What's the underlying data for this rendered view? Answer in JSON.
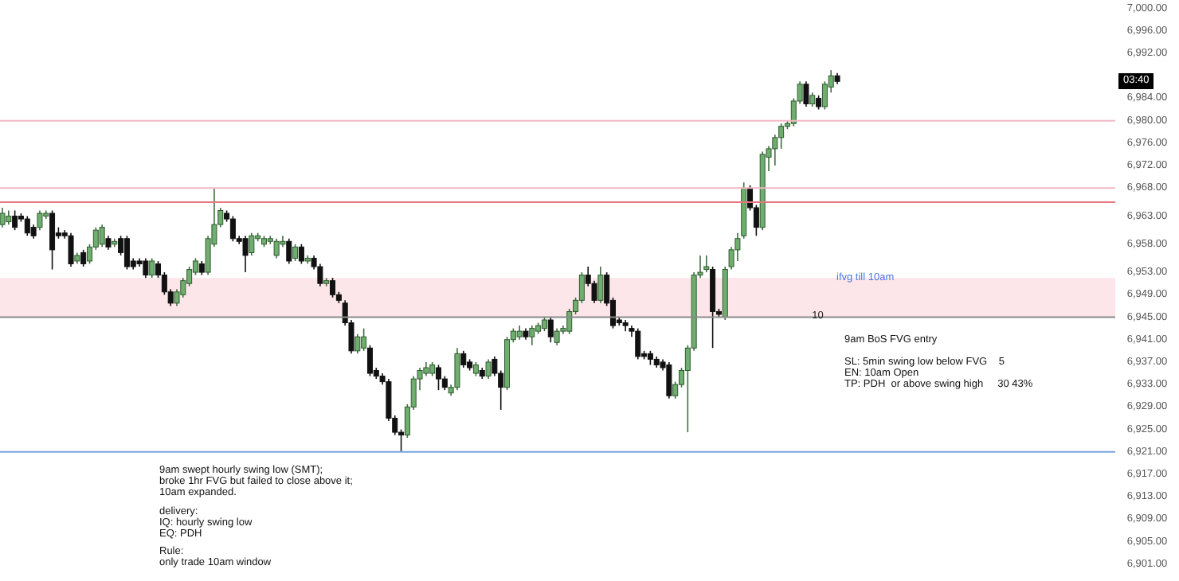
{
  "chart_data": {
    "type": "candlestick",
    "categories": [
      null,
      null,
      null,
      null,
      null,
      null,
      null,
      null,
      null,
      null,
      null,
      null,
      null,
      null,
      null,
      null,
      null,
      null,
      null,
      null,
      null,
      null,
      null,
      null,
      null,
      null,
      null,
      null,
      null,
      null,
      null,
      null,
      null,
      null,
      null,
      null,
      null,
      null,
      null,
      null,
      null,
      null,
      null,
      null,
      null,
      null,
      null,
      null,
      null,
      null,
      null,
      null,
      null,
      null,
      null,
      null,
      null,
      null,
      null,
      null,
      null,
      null,
      null,
      null,
      null,
      null,
      null,
      null,
      null,
      null,
      null,
      null,
      null,
      null,
      null,
      null,
      null,
      null,
      null,
      null,
      null,
      null,
      null,
      null,
      null,
      null,
      null,
      null,
      null,
      null,
      null,
      null,
      null,
      null,
      null,
      null,
      null,
      null,
      null,
      null,
      null,
      null,
      null,
      null,
      null,
      null,
      null,
      null,
      null,
      null,
      null,
      null,
      null,
      null,
      null,
      null,
      null,
      null,
      null,
      null,
      null,
      null,
      null,
      null,
      null,
      null,
      null,
      null,
      null,
      null,
      null,
      null,
      null,
      null,
      null,
      null,
      null,
      null,
      null,
      null,
      null,
      null,
      null,
      null,
      null,
      null,
      null,
      null,
      null,
      null,
      null,
      null,
      null,
      null,
      null,
      null,
      null,
      null,
      null,
      null,
      null,
      null,
      null,
      null,
      null,
      null,
      null,
      null,
      null,
      null,
      null,
      null,
      null,
      null,
      null,
      null,
      null,
      null,
      null
    ],
    "ohlc": [
      [
        6961.5,
        6964.5,
        6961,
        6963.5
      ],
      [
        6962,
        6964,
        6961.5,
        6963
      ],
      [
        6963,
        6964,
        6960.5,
        6961
      ],
      [
        6963,
        6963.5,
        6962,
        6962.5
      ],
      [
        6962.5,
        6963,
        6959.5,
        6960
      ],
      [
        6961,
        6961.5,
        6959,
        6959.5
      ],
      [
        6961,
        6964,
        6960.5,
        6963.5
      ],
      [
        6963,
        6964,
        6962.5,
        6963.5
      ],
      [
        6963.5,
        6964,
        6953.5,
        6957
      ],
      [
        6960,
        6961,
        6959,
        6959.5
      ],
      [
        6960,
        6960.5,
        6959,
        6959.5
      ],
      [
        6959.5,
        6960,
        6954,
        6954.5
      ],
      [
        6955,
        6956.5,
        6954.5,
        6956
      ],
      [
        6956.5,
        6957,
        6954,
        6954.5
      ],
      [
        6955,
        6958,
        6954.5,
        6957.5
      ],
      [
        6957.5,
        6961,
        6957,
        6960.5
      ],
      [
        6958,
        6961.5,
        6957.5,
        6961
      ],
      [
        6959,
        6959.5,
        6957,
        6957.5
      ],
      [
        6958,
        6959,
        6957.5,
        6958.5
      ],
      [
        6959,
        6959.5,
        6956,
        6956.5
      ],
      [
        6959,
        6959.5,
        6953.5,
        6954
      ],
      [
        6955,
        6955.5,
        6953.5,
        6954
      ],
      [
        6955,
        6955.5,
        6954,
        6954.5
      ],
      [
        6955,
        6955.5,
        6952,
        6952.5
      ],
      [
        6952.5,
        6955.5,
        6952,
        6955
      ],
      [
        6954.5,
        6955,
        6952,
        6952.5
      ],
      [
        6952.5,
        6953,
        6949,
        6949.5
      ],
      [
        6949.5,
        6950,
        6947,
        6947.5
      ],
      [
        6947.5,
        6950,
        6947,
        6949.5
      ],
      [
        6949,
        6952,
        6948.5,
        6951.5
      ],
      [
        6951,
        6954,
        6950.5,
        6953.5
      ],
      [
        6953,
        6955.5,
        6952.5,
        6955
      ],
      [
        6954.5,
        6955,
        6952.5,
        6953
      ],
      [
        6953,
        6959.5,
        6952.5,
        6959
      ],
      [
        6958,
        6968,
        6957.5,
        6961.5
      ],
      [
        6961.5,
        6964.5,
        6961,
        6964
      ],
      [
        6963.5,
        6964,
        6962,
        6962.5
      ],
      [
        6962.5,
        6963,
        6958.5,
        6959
      ],
      [
        6959,
        6959.5,
        6958,
        6958.5
      ],
      [
        6959,
        6959.5,
        6953,
        6956
      ],
      [
        6956.5,
        6960,
        6956,
        6959.5
      ],
      [
        6959,
        6960,
        6958.5,
        6959.5
      ],
      [
        6958,
        6959.5,
        6957.5,
        6959
      ],
      [
        6958.5,
        6959.5,
        6958,
        6959
      ],
      [
        6956,
        6959,
        6955.5,
        6958.5
      ],
      [
        6958,
        6959.5,
        6957.5,
        6958.5
      ],
      [
        6958.5,
        6959,
        6954.5,
        6955
      ],
      [
        6955.5,
        6958,
        6955,
        6957.5
      ],
      [
        6957.5,
        6958,
        6954.5,
        6955
      ],
      [
        6955,
        6956,
        6954.5,
        6955.5
      ],
      [
        6955.5,
        6956,
        6953.5,
        6954
      ],
      [
        6954,
        6954.5,
        6950.5,
        6951
      ],
      [
        6951,
        6952,
        6950.5,
        6951.5
      ],
      [
        6951.5,
        6952,
        6948.5,
        6949
      ],
      [
        6949,
        6949.5,
        6947.5,
        6948
      ],
      [
        6947.5,
        6948,
        6943.5,
        6944
      ],
      [
        6944,
        6944.5,
        6938.5,
        6939
      ],
      [
        6939,
        6942,
        6938.5,
        6941.5
      ],
      [
        6939.5,
        6943,
        6939,
        6941.5
      ],
      [
        6939.5,
        6940,
        6934.5,
        6935
      ],
      [
        6935.5,
        6936,
        6934,
        6934.5
      ],
      [
        6934.5,
        6935,
        6933,
        6933.5
      ],
      [
        6933.5,
        6934,
        6926.5,
        6927
      ],
      [
        6927,
        6927.5,
        6924,
        6924.5
      ],
      [
        6924.5,
        6925,
        6921,
        6924
      ],
      [
        6924,
        6929.5,
        6923.5,
        6929
      ],
      [
        6929,
        6934.5,
        6928.5,
        6934
      ],
      [
        6934,
        6936,
        6932,
        6935.5
      ],
      [
        6935,
        6937,
        6934.5,
        6936
      ],
      [
        6935,
        6937,
        6934.5,
        6936.5
      ],
      [
        6936,
        6936.5,
        6932,
        6934
      ],
      [
        6934,
        6934.5,
        6932,
        6932.5
      ],
      [
        6931.5,
        6933,
        6931,
        6932.5
      ],
      [
        6932.5,
        6939.5,
        6932,
        6938.5
      ],
      [
        6938.5,
        6939,
        6936,
        6936.5
      ],
      [
        6937,
        6937.5,
        6935.5,
        6936
      ],
      [
        6935,
        6937,
        6934.5,
        6936.5
      ],
      [
        6935.5,
        6936,
        6934,
        6934.5
      ],
      [
        6934.5,
        6937.5,
        6934,
        6937
      ],
      [
        6937.5,
        6938,
        6934.5,
        6935
      ],
      [
        6935,
        6935.5,
        6928.5,
        6932.5
      ],
      [
        6932.5,
        6941.5,
        6932,
        6941
      ],
      [
        6941,
        6943,
        6940.5,
        6942.5
      ],
      [
        6941.5,
        6943.5,
        6941,
        6942.5
      ],
      [
        6942.5,
        6943,
        6941,
        6941.5
      ],
      [
        6941.5,
        6943.5,
        6940,
        6943
      ],
      [
        6942.5,
        6944,
        6942,
        6943.5
      ],
      [
        6943,
        6945,
        6942.5,
        6944.5
      ],
      [
        6944.5,
        6945,
        6940.5,
        6941.5
      ],
      [
        6940.5,
        6943,
        6940,
        6942.5
      ],
      [
        6942.5,
        6943.5,
        6942,
        6943
      ],
      [
        6942.5,
        6946.5,
        6942,
        6946
      ],
      [
        6946,
        6948.5,
        6945.5,
        6948
      ],
      [
        6948,
        6953,
        6947.5,
        6952.5
      ],
      [
        6952.5,
        6954,
        6950.5,
        6951
      ],
      [
        6951,
        6951.5,
        6947.5,
        6948
      ],
      [
        6948,
        6954,
        6947.5,
        6952.5
      ],
      [
        6952.5,
        6953,
        6947,
        6947.5
      ],
      [
        6948,
        6948.5,
        6943,
        6943.5
      ],
      [
        6944.5,
        6945,
        6943.5,
        6944
      ],
      [
        6944,
        6944.5,
        6942.5,
        6943.5
      ],
      [
        6943,
        6943.5,
        6941.5,
        6942.5
      ],
      [
        6942.5,
        6943,
        6937.5,
        6938
      ],
      [
        6938.5,
        6939,
        6937.5,
        6938
      ],
      [
        6938.5,
        6939,
        6936.5,
        6937.5
      ],
      [
        6937.5,
        6938,
        6936,
        6936.5
      ],
      [
        6937,
        6937.5,
        6935.5,
        6936
      ],
      [
        6936.5,
        6937,
        6930.5,
        6931
      ],
      [
        6931,
        6933.5,
        6930.5,
        6933
      ],
      [
        6933,
        6936,
        6932.5,
        6935.5
      ],
      [
        6935.5,
        6940,
        6924.5,
        6939.5
      ],
      [
        6939.5,
        6953,
        6939,
        6952.5
      ],
      [
        6952.5,
        6956,
        6952,
        6953
      ],
      [
        6953.5,
        6956,
        6953,
        6954
      ],
      [
        6953.5,
        6954,
        6939.5,
        6946
      ],
      [
        6946,
        6946.5,
        6945,
        6945.5
      ],
      [
        6945,
        6954,
        6944.5,
        6953.5
      ],
      [
        6954,
        6957.5,
        6953.5,
        6957
      ],
      [
        6957,
        6960,
        6955,
        6959
      ],
      [
        6959.5,
        6969,
        6959,
        6968
      ],
      [
        6968,
        6968.5,
        6964,
        6964.5
      ],
      [
        6964.5,
        6965,
        6959.5,
        6961
      ],
      [
        6961,
        6974.5,
        6960.5,
        6974
      ],
      [
        6973.5,
        6975.5,
        6971,
        6975
      ],
      [
        6975,
        6977.5,
        6972,
        6977
      ],
      [
        6977,
        6979.5,
        6975,
        6979
      ],
      [
        6979,
        6980,
        6978.5,
        6979.5
      ],
      [
        6979.5,
        6984,
        6979,
        6983.5
      ],
      [
        6983.5,
        6987,
        6983,
        6986.5
      ],
      [
        6986.5,
        6987,
        6982.5,
        6983
      ],
      [
        6983,
        6985,
        6982.5,
        6984.5
      ],
      [
        6984,
        6984.5,
        6982,
        6982.5
      ],
      [
        6982.5,
        6987,
        6982,
        6986.5
      ],
      [
        6986,
        6989,
        6985,
        6988
      ],
      [
        6988,
        6988.5,
        6986.5,
        6987
      ],
      null,
      null,
      null,
      null,
      null,
      null,
      null,
      null,
      null,
      null,
      null,
      null,
      null,
      null,
      null,
      null,
      null,
      null,
      null,
      null,
      null,
      null,
      null,
      null,
      null,
      null,
      null,
      null,
      null,
      null,
      null,
      null,
      null,
      null,
      null,
      null,
      null,
      null,
      null,
      null,
      null,
      null,
      null,
      null
    ],
    "ylim": [
      6898,
      7001.5
    ],
    "yticks": [
      {
        "value": 7000,
        "label": "7,000.00"
      },
      {
        "value": 6996,
        "label": "6,996.00"
      },
      {
        "value": 6992,
        "label": "6,992.00"
      },
      {
        "value": 6984,
        "label": "6,984.00"
      },
      {
        "value": 6980,
        "label": "6,980.00"
      },
      {
        "value": 6976,
        "label": "6,976.00"
      },
      {
        "value": 6972,
        "label": "6,972.00"
      },
      {
        "value": 6968,
        "label": "6,968.00"
      },
      {
        "value": 6963,
        "label": "6,963.00"
      },
      {
        "value": 6958,
        "label": "6,958.00"
      },
      {
        "value": 6953,
        "label": "6,953.00"
      },
      {
        "value": 6949,
        "label": "6,949.00"
      },
      {
        "value": 6945,
        "label": "6,945.00"
      },
      {
        "value": 6941,
        "label": "6,941.00"
      },
      {
        "value": 6937,
        "label": "6,937.00"
      },
      {
        "value": 6933,
        "label": "6,933.00"
      },
      {
        "value": 6929,
        "label": "6,929.00"
      },
      {
        "value": 6925,
        "label": "6,925.00"
      },
      {
        "value": 6921,
        "label": "6,921.00"
      },
      {
        "value": 6917,
        "label": "6,917.00"
      },
      {
        "value": 6913,
        "label": "6,913.00"
      },
      {
        "value": 6909,
        "label": "6,909.00"
      },
      {
        "value": 6905,
        "label": "6,905.00"
      },
      {
        "value": 6901,
        "label": "6,901.00"
      }
    ],
    "tick_labels": "y",
    "grid": false,
    "legend": false,
    "ref_lines": [
      {
        "axis": "y",
        "value": 6980,
        "label": null,
        "color": "#f3b8c4"
      },
      {
        "axis": "y",
        "value": 6968,
        "label": null,
        "color": "#f3b8c4"
      },
      {
        "axis": "y",
        "value": 6965.5,
        "label": null,
        "color": "#e8767f"
      },
      {
        "axis": "y",
        "value": 6945,
        "label": null,
        "color": "#8a8a8a"
      },
      {
        "axis": "y",
        "value": 6921,
        "label": null,
        "color": "#7aa3e0"
      }
    ],
    "bands": [
      {
        "axis": "y",
        "from": 6945,
        "to": 6952,
        "label": "ifvg till 10am",
        "color": "#fce6e9"
      }
    ],
    "annotations": [
      "9am swept hourly swing low (SMT);\nbroke 1hr FVG but failed to close above it;\n10am expanded.",
      "delivery:\nIQ: hourly swing low\nEQ: PDH",
      "Rule:\nonly trade 10am window",
      "9am BoS FVG entry",
      "SL: 5min swing low below FVG    5\nEN: 10am Open\nTP: PDH  or above swing high     30 43%",
      {
        "text": "03:40",
        "y": 6987
      },
      {
        "text": "10",
        "y": 6945
      }
    ]
  }
}
